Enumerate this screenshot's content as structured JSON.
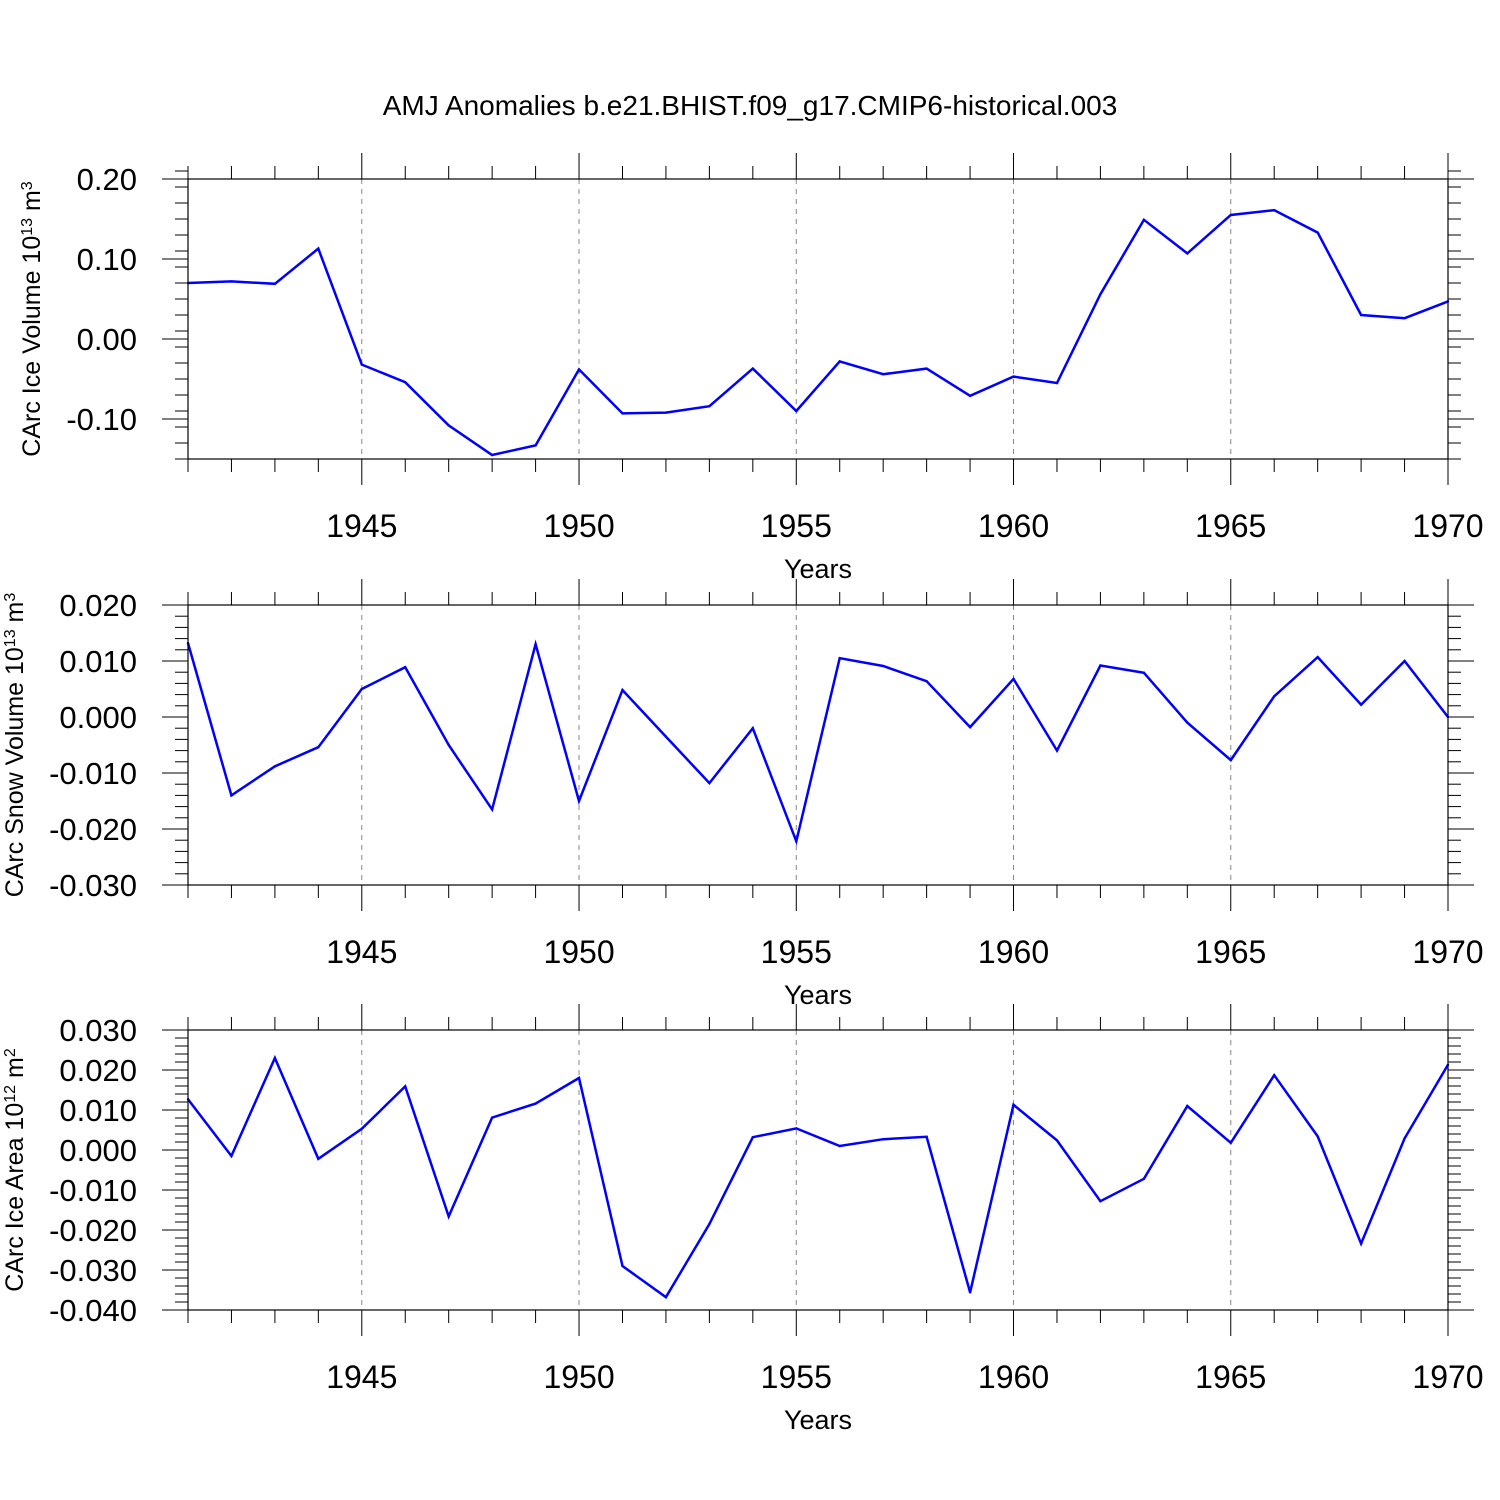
{
  "chart_data": [
    {
      "type": "line",
      "title": "AMJ Anomalies b.e21.BHIST.f09_g17.CMIP6-historical.003",
      "xlabel": "Years",
      "ylabel": {
        "prefix": "CArc Ice Volume 10",
        "exponent": "13",
        "unit": " m",
        "unit_exponent": "3"
      },
      "x": [
        1941,
        1942,
        1943,
        1944,
        1945,
        1946,
        1947,
        1948,
        1949,
        1950,
        1951,
        1952,
        1953,
        1954,
        1955,
        1956,
        1957,
        1958,
        1959,
        1960,
        1961,
        1962,
        1963,
        1964,
        1965,
        1966,
        1967,
        1968,
        1969,
        1970
      ],
      "values": [
        0.07,
        0.072,
        0.069,
        0.113,
        -0.032,
        -0.054,
        -0.108,
        -0.145,
        -0.133,
        -0.038,
        -0.093,
        -0.092,
        -0.084,
        -0.037,
        -0.09,
        -0.028,
        -0.044,
        -0.037,
        -0.071,
        -0.047,
        -0.055,
        0.056,
        0.149,
        0.107,
        0.155,
        0.161,
        0.133,
        0.03,
        0.026,
        0.047
      ],
      "xlim": [
        1941,
        1970
      ],
      "ylim": [
        -0.15,
        0.2
      ],
      "yticks": [
        -0.1,
        0.0,
        0.1,
        0.2
      ],
      "ytick_labels": [
        "-0.10",
        "0.00",
        "0.10",
        "0.20"
      ],
      "yminor_step": 0.02,
      "xticks": [
        1945,
        1950,
        1955,
        1960,
        1965,
        1970
      ],
      "xtick_labels": [
        "1945",
        "1950",
        "1955",
        "1960",
        "1965",
        "1970"
      ],
      "grid": "vertical dashed at major x ticks",
      "line_color": "#0000ff"
    },
    {
      "type": "line",
      "xlabel": "Years",
      "ylabel": {
        "prefix": "CArc Snow Volume 10",
        "exponent": "13",
        "unit": " m",
        "unit_exponent": "3"
      },
      "x": [
        1941,
        1942,
        1943,
        1944,
        1945,
        1946,
        1947,
        1948,
        1949,
        1950,
        1951,
        1952,
        1953,
        1954,
        1955,
        1956,
        1957,
        1958,
        1959,
        1960,
        1961,
        1962,
        1963,
        1964,
        1965,
        1966,
        1967,
        1968,
        1969,
        1970
      ],
      "values": [
        0.0132,
        -0.014,
        -0.0088,
        -0.0054,
        0.005,
        0.0089,
        -0.005,
        -0.0165,
        0.013,
        -0.015,
        0.0048,
        -0.0035,
        -0.0118,
        -0.002,
        -0.0222,
        0.0105,
        0.0091,
        0.0064,
        -0.0018,
        0.0068,
        -0.006,
        0.0092,
        0.0079,
        -0.001,
        -0.0077,
        0.0037,
        0.0107,
        0.0022,
        0.01,
        0.0
      ],
      "xlim": [
        1941,
        1970
      ],
      "ylim": [
        -0.03,
        0.02
      ],
      "yticks": [
        -0.03,
        -0.02,
        -0.01,
        0.0,
        0.01,
        0.02
      ],
      "ytick_labels": [
        "-0.030",
        "-0.020",
        "-0.010",
        "0.000",
        "0.010",
        "0.020"
      ],
      "yminor_step": 0.002,
      "xticks": [
        1945,
        1950,
        1955,
        1960,
        1965,
        1970
      ],
      "xtick_labels": [
        "1945",
        "1950",
        "1955",
        "1960",
        "1965",
        "1970"
      ],
      "grid": "vertical dashed at major x ticks",
      "line_color": "#0000ff"
    },
    {
      "type": "line",
      "xlabel": "Years",
      "ylabel": {
        "prefix": "CArc Ice Area 10",
        "exponent": "12",
        "unit": " m",
        "unit_exponent": "2"
      },
      "x": [
        1941,
        1942,
        1943,
        1944,
        1945,
        1946,
        1947,
        1948,
        1949,
        1950,
        1951,
        1952,
        1953,
        1954,
        1955,
        1956,
        1957,
        1958,
        1959,
        1960,
        1961,
        1962,
        1963,
        1964,
        1965,
        1966,
        1967,
        1968,
        1969,
        1970
      ],
      "values": [
        0.0127,
        -0.0015,
        0.023,
        -0.0022,
        0.0053,
        0.0159,
        -0.0166,
        0.0081,
        0.0116,
        0.018,
        -0.029,
        -0.0368,
        -0.0185,
        0.0032,
        0.0054,
        0.001,
        0.0027,
        0.0033,
        -0.0356,
        0.0113,
        0.0024,
        -0.0128,
        -0.0072,
        0.011,
        0.0018,
        0.0187,
        0.0034,
        -0.0234,
        0.0029,
        0.0213
      ],
      "xlim": [
        1941,
        1970
      ],
      "ylim": [
        -0.04,
        0.03
      ],
      "yticks": [
        -0.04,
        -0.03,
        -0.02,
        -0.01,
        0.0,
        0.01,
        0.02,
        0.03
      ],
      "ytick_labels": [
        "-0.040",
        "-0.030",
        "-0.020",
        "-0.010",
        "0.000",
        "0.010",
        "0.020",
        "0.030"
      ],
      "yminor_step": 0.002,
      "xticks": [
        1945,
        1950,
        1955,
        1960,
        1965,
        1970
      ],
      "xtick_labels": [
        "1945",
        "1950",
        "1955",
        "1960",
        "1965",
        "1970"
      ],
      "grid": "vertical dashed at major x ticks",
      "line_color": "#0000ff"
    }
  ]
}
